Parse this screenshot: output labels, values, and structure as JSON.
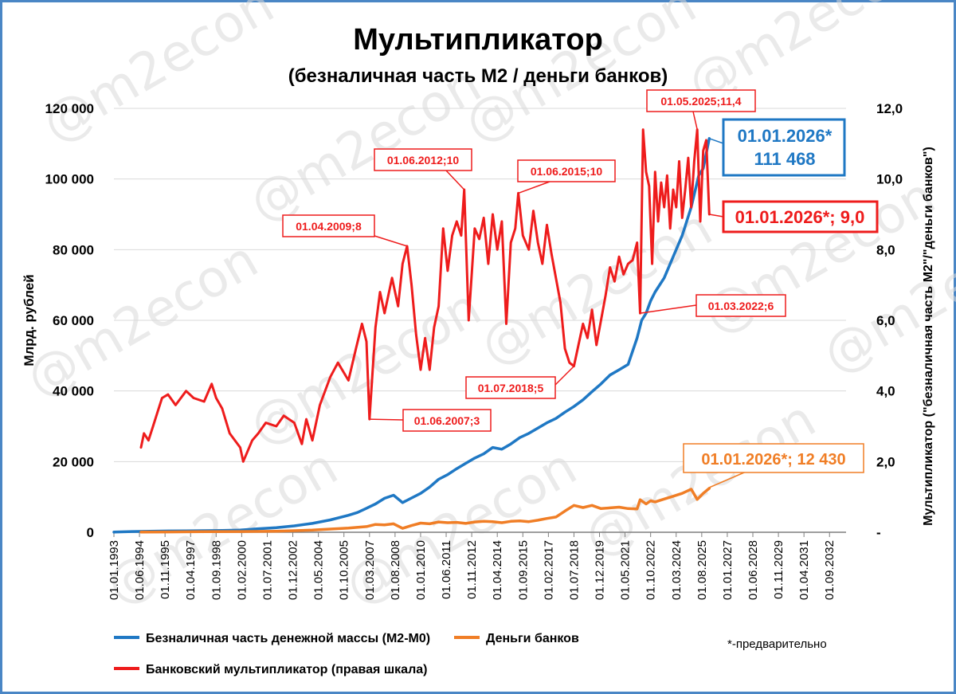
{
  "chart_data": {
    "type": "line",
    "title": "Мультипликатор",
    "subtitle": "(безналичная часть М2 / деньги банков)",
    "ylabel_left": "Млрд. рублей",
    "ylabel_right": "Мультипликатор (\"безналичная часть М2\"/\"деньги банков\")",
    "ylim_left": [
      0,
      120000
    ],
    "ylim_right": [
      0,
      12
    ],
    "left_ticks": [
      "0",
      "20 000",
      "40 000",
      "60 000",
      "80 000",
      "100 000",
      "120 000"
    ],
    "right_ticks": [
      "-",
      "2,0",
      "4,0",
      "6,0",
      "8,0",
      "10,0",
      "12,0"
    ],
    "x_ticks": [
      "01.01.1993",
      "01.06.1994",
      "01.11.1995",
      "01.04.1997",
      "01.09.1998",
      "01.02.2000",
      "01.07.2001",
      "01.12.2002",
      "01.05.2004",
      "01.10.2005",
      "01.03.2007",
      "01.08.2008",
      "01.01.2010",
      "01.06.2011",
      "01.11.2012",
      "01.04.2014",
      "01.09.2015",
      "01.02.2017",
      "01.07.2018",
      "01.12.2019",
      "01.05.2021",
      "01.10.2022",
      "01.03.2024",
      "01.08.2025",
      "01.01.2027",
      "01.06.2028",
      "01.11.2029",
      "01.04.2031",
      "01.09.2032"
    ],
    "x_start": "1993-01",
    "x_end": "2033-08",
    "grid": true,
    "legend_placement": "bottom",
    "footnote": "*-предварительно",
    "watermark": "@m2econ",
    "series": [
      {
        "name": "Безналичная часть денежной массы (М2-М0)",
        "axis": "left",
        "color": "#1f78c4",
        "points": [
          [
            "1993-01",
            50
          ],
          [
            "1994-01",
            200
          ],
          [
            "1995-01",
            300
          ],
          [
            "1996-01",
            350
          ],
          [
            "1997-01",
            400
          ],
          [
            "1998-01",
            450
          ],
          [
            "1999-01",
            500
          ],
          [
            "2000-01",
            600
          ],
          [
            "2001-01",
            1000
          ],
          [
            "2002-01",
            1300
          ],
          [
            "2003-01",
            1800
          ],
          [
            "2004-01",
            2500
          ],
          [
            "2005-01",
            3500
          ],
          [
            "2006-01",
            4800
          ],
          [
            "2006-07",
            5600
          ],
          [
            "2007-01",
            6800
          ],
          [
            "2007-07",
            8000
          ],
          [
            "2008-01",
            9600
          ],
          [
            "2008-07",
            10500
          ],
          [
            "2009-01",
            8400
          ],
          [
            "2009-07",
            9700
          ],
          [
            "2010-01",
            11000
          ],
          [
            "2010-07",
            12800
          ],
          [
            "2011-01",
            15000
          ],
          [
            "2011-07",
            16300
          ],
          [
            "2012-01",
            18000
          ],
          [
            "2012-07",
            19500
          ],
          [
            "2013-01",
            21000
          ],
          [
            "2013-07",
            22200
          ],
          [
            "2014-01",
            24000
          ],
          [
            "2014-07",
            23500
          ],
          [
            "2015-01",
            25000
          ],
          [
            "2015-07",
            26800
          ],
          [
            "2016-01",
            28000
          ],
          [
            "2016-07",
            29500
          ],
          [
            "2017-01",
            31000
          ],
          [
            "2017-07",
            32200
          ],
          [
            "2018-01",
            34000
          ],
          [
            "2018-07",
            35600
          ],
          [
            "2019-01",
            37500
          ],
          [
            "2019-07",
            39800
          ],
          [
            "2020-01",
            42000
          ],
          [
            "2020-07",
            44500
          ],
          [
            "2021-01",
            46000
          ],
          [
            "2021-07",
            47500
          ],
          [
            "2022-01",
            55000
          ],
          [
            "2022-04",
            60000
          ],
          [
            "2022-07",
            62000
          ],
          [
            "2022-10",
            65500
          ],
          [
            "2023-01",
            68000
          ],
          [
            "2023-07",
            72000
          ],
          [
            "2024-01",
            78000
          ],
          [
            "2024-07",
            84000
          ],
          [
            "2025-01",
            92000
          ],
          [
            "2025-06",
            101000
          ],
          [
            "2025-09",
            103000
          ],
          [
            "2026-01",
            111468
          ]
        ]
      },
      {
        "name": "Деньги банков",
        "axis": "left",
        "color": "#f07e26",
        "points": [
          [
            "1994-07",
            50
          ],
          [
            "1996-01",
            100
          ],
          [
            "1998-01",
            150
          ],
          [
            "2000-01",
            200
          ],
          [
            "2002-01",
            300
          ],
          [
            "2004-01",
            600
          ],
          [
            "2005-01",
            900
          ],
          [
            "2006-01",
            1200
          ],
          [
            "2007-01",
            1600
          ],
          [
            "2007-07",
            2200
          ],
          [
            "2008-01",
            2100
          ],
          [
            "2008-07",
            2400
          ],
          [
            "2009-01",
            1100
          ],
          [
            "2009-07",
            1900
          ],
          [
            "2010-01",
            2600
          ],
          [
            "2010-07",
            2400
          ],
          [
            "2011-01",
            2900
          ],
          [
            "2011-07",
            2700
          ],
          [
            "2012-01",
            2800
          ],
          [
            "2012-07",
            2500
          ],
          [
            "2013-01",
            2900
          ],
          [
            "2013-07",
            3100
          ],
          [
            "2014-01",
            3000
          ],
          [
            "2014-07",
            2700
          ],
          [
            "2015-01",
            3100
          ],
          [
            "2015-07",
            3200
          ],
          [
            "2016-01",
            3000
          ],
          [
            "2016-07",
            3400
          ],
          [
            "2017-01",
            3900
          ],
          [
            "2017-07",
            4300
          ],
          [
            "2018-01",
            6000
          ],
          [
            "2018-07",
            7600
          ],
          [
            "2019-01",
            7000
          ],
          [
            "2019-07",
            7600
          ],
          [
            "2020-01",
            6700
          ],
          [
            "2020-07",
            6900
          ],
          [
            "2021-01",
            7100
          ],
          [
            "2021-07",
            6700
          ],
          [
            "2022-01",
            6600
          ],
          [
            "2022-03",
            9200
          ],
          [
            "2022-07",
            8000
          ],
          [
            "2022-10",
            8900
          ],
          [
            "2023-01",
            8600
          ],
          [
            "2023-07",
            9400
          ],
          [
            "2024-01",
            10200
          ],
          [
            "2024-07",
            11000
          ],
          [
            "2025-01",
            12200
          ],
          [
            "2025-05",
            9300
          ],
          [
            "2025-09",
            11000
          ],
          [
            "2026-01",
            12430
          ]
        ]
      },
      {
        "name": "Банковский мультипликатор (правая шкала)",
        "axis": "right",
        "color": "#ee1c1c",
        "points": [
          [
            "1994-07",
            2.4
          ],
          [
            "1994-09",
            2.8
          ],
          [
            "1994-12",
            2.6
          ],
          [
            "1995-03",
            3.0
          ],
          [
            "1995-06",
            3.4
          ],
          [
            "1995-09",
            3.8
          ],
          [
            "1996-01",
            3.9
          ],
          [
            "1996-06",
            3.6
          ],
          [
            "1997-01",
            4.0
          ],
          [
            "1997-06",
            3.8
          ],
          [
            "1998-01",
            3.7
          ],
          [
            "1998-06",
            4.2
          ],
          [
            "1998-09",
            3.8
          ],
          [
            "1999-01",
            3.5
          ],
          [
            "1999-06",
            2.8
          ],
          [
            "2000-01",
            2.4
          ],
          [
            "2000-03",
            2.0
          ],
          [
            "2000-09",
            2.6
          ],
          [
            "2001-01",
            2.8
          ],
          [
            "2001-06",
            3.1
          ],
          [
            "2002-01",
            3.0
          ],
          [
            "2002-06",
            3.3
          ],
          [
            "2003-01",
            3.1
          ],
          [
            "2003-06",
            2.5
          ],
          [
            "2003-09",
            3.2
          ],
          [
            "2004-01",
            2.6
          ],
          [
            "2004-06",
            3.6
          ],
          [
            "2005-01",
            4.4
          ],
          [
            "2005-06",
            4.8
          ],
          [
            "2006-01",
            4.3
          ],
          [
            "2006-06",
            5.2
          ],
          [
            "2006-10",
            5.9
          ],
          [
            "2007-01",
            5.4
          ],
          [
            "2007-03",
            3.2
          ],
          [
            "2007-07",
            5.8
          ],
          [
            "2007-10",
            6.8
          ],
          [
            "2008-01",
            6.2
          ],
          [
            "2008-06",
            7.2
          ],
          [
            "2008-10",
            6.4
          ],
          [
            "2009-01",
            7.6
          ],
          [
            "2009-04",
            8.1
          ],
          [
            "2009-07",
            7.0
          ],
          [
            "2009-10",
            5.6
          ],
          [
            "2010-01",
            4.6
          ],
          [
            "2010-04",
            5.5
          ],
          [
            "2010-07",
            4.6
          ],
          [
            "2010-10",
            5.8
          ],
          [
            "2011-01",
            6.4
          ],
          [
            "2011-04",
            8.6
          ],
          [
            "2011-07",
            7.4
          ],
          [
            "2011-10",
            8.4
          ],
          [
            "2012-01",
            8.8
          ],
          [
            "2012-04",
            8.4
          ],
          [
            "2012-06",
            9.7
          ],
          [
            "2012-09",
            6.0
          ],
          [
            "2013-01",
            8.6
          ],
          [
            "2013-04",
            8.3
          ],
          [
            "2013-07",
            8.9
          ],
          [
            "2013-10",
            7.6
          ],
          [
            "2014-01",
            9.0
          ],
          [
            "2014-04",
            8.0
          ],
          [
            "2014-07",
            8.8
          ],
          [
            "2014-10",
            5.9
          ],
          [
            "2015-01",
            8.2
          ],
          [
            "2015-04",
            8.6
          ],
          [
            "2015-06",
            9.6
          ],
          [
            "2015-09",
            8.4
          ],
          [
            "2016-01",
            8.0
          ],
          [
            "2016-04",
            9.1
          ],
          [
            "2016-07",
            8.2
          ],
          [
            "2016-10",
            7.6
          ],
          [
            "2017-01",
            8.7
          ],
          [
            "2017-04",
            7.9
          ],
          [
            "2017-07",
            7.2
          ],
          [
            "2017-10",
            6.5
          ],
          [
            "2018-01",
            5.2
          ],
          [
            "2018-04",
            4.8
          ],
          [
            "2018-07",
            4.7
          ],
          [
            "2018-10",
            5.3
          ],
          [
            "2019-01",
            5.9
          ],
          [
            "2019-04",
            5.5
          ],
          [
            "2019-07",
            6.3
          ],
          [
            "2019-10",
            5.3
          ],
          [
            "2020-01",
            6.0
          ],
          [
            "2020-04",
            6.7
          ],
          [
            "2020-07",
            7.5
          ],
          [
            "2020-10",
            7.1
          ],
          [
            "2021-01",
            7.8
          ],
          [
            "2021-04",
            7.3
          ],
          [
            "2021-07",
            7.6
          ],
          [
            "2021-10",
            7.7
          ],
          [
            "2022-01",
            8.2
          ],
          [
            "2022-03",
            6.2
          ],
          [
            "2022-05",
            11.4
          ],
          [
            "2022-07",
            10.2
          ],
          [
            "2022-09",
            9.8
          ],
          [
            "2022-11",
            7.6
          ],
          [
            "2023-01",
            10.2
          ],
          [
            "2023-03",
            8.8
          ],
          [
            "2023-05",
            9.9
          ],
          [
            "2023-07",
            9.2
          ],
          [
            "2023-09",
            10.1
          ],
          [
            "2023-11",
            8.6
          ],
          [
            "2024-01",
            9.7
          ],
          [
            "2024-03",
            9.2
          ],
          [
            "2024-05",
            10.5
          ],
          [
            "2024-07",
            8.9
          ],
          [
            "2024-09",
            9.7
          ],
          [
            "2024-11",
            10.6
          ],
          [
            "2025-01",
            9.2
          ],
          [
            "2025-03",
            10.5
          ],
          [
            "2025-05",
            11.4
          ],
          [
            "2025-07",
            8.8
          ],
          [
            "2025-09",
            10.8
          ],
          [
            "2025-11",
            11.1
          ],
          [
            "2026-01",
            9.0
          ]
        ]
      }
    ],
    "annotations": [
      {
        "label": "01.06.2007;3",
        "color": "#ee1c1c",
        "style": "plain"
      },
      {
        "label": "01.04.2009;8",
        "color": "#ee1c1c",
        "style": "plain"
      },
      {
        "label": "01.06.2012;10",
        "color": "#ee1c1c",
        "style": "plain"
      },
      {
        "label": "01.06.2015;10",
        "color": "#ee1c1c",
        "style": "plain"
      },
      {
        "label": "01.07.2018;5",
        "color": "#ee1c1c",
        "style": "plain"
      },
      {
        "label": "01.03.2022;6",
        "color": "#ee1c1c",
        "style": "plain"
      },
      {
        "label": "01.05.2025;11,4",
        "color": "#ee1c1c",
        "style": "plain"
      },
      {
        "label": "01.01.2026*; 12 430",
        "color": "#f07e26",
        "style": "orange"
      },
      {
        "label": "01.01.2026*;   9,0",
        "color": "#ee1c1c",
        "style": "bigred"
      },
      {
        "line1": "01.01.2026*",
        "line2": "111 468",
        "color": "#1f78c4",
        "style": "blue"
      }
    ]
  }
}
